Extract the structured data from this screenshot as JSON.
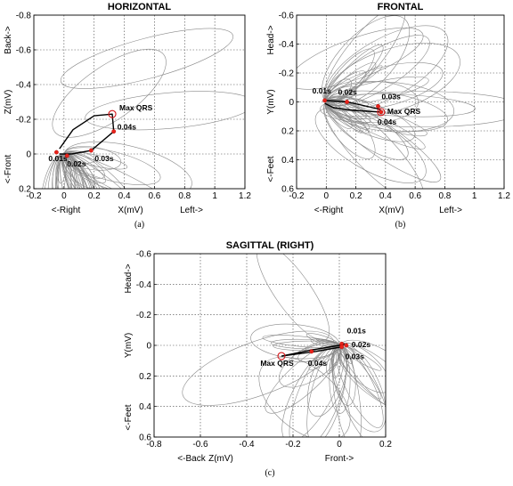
{
  "chart_data": [
    {
      "type": "scatter",
      "title": "HORIZONTAL",
      "caption": "(a)",
      "xlim": [
        -0.2,
        1.2
      ],
      "ylim": [
        -0.8,
        0.2
      ],
      "y_inverted": true,
      "x_ticks": [
        "-0.2",
        "0",
        "0.2",
        "0.4",
        "0.6",
        "0.8",
        "1",
        "1.2"
      ],
      "y_ticks": [
        "-0.8",
        "-0.6",
        "-0.4",
        "-0.2",
        "0",
        "0.2"
      ],
      "x_ticks_shown": [
        "-0.2",
        "0",
        "0.2",
        "0.4",
        "0.6",
        "0.8",
        "1",
        "1.2"
      ],
      "xlabel": "X(mV)",
      "xlabel_left": "<-Right",
      "xlabel_right": "Left->",
      "ylabel": "Z(mV)",
      "ylabel_top": "Back->",
      "ylabel_bottom": "<-Front",
      "grid": true,
      "max_qrs": {
        "label": "Max QRS",
        "x": 0.32,
        "y": -0.23
      },
      "loop": [
        [
          -0.03,
          0.0
        ],
        [
          0.05,
          0.0
        ],
        [
          0.18,
          -0.02
        ],
        [
          0.33,
          -0.13
        ],
        [
          0.32,
          -0.23
        ],
        [
          0.2,
          -0.22
        ],
        [
          0.06,
          -0.14
        ],
        [
          -0.03,
          -0.03
        ]
      ],
      "points": [
        {
          "label": "0.01s",
          "x": -0.05,
          "y": -0.01
        },
        {
          "label": "0.02s",
          "x": 0.02,
          "y": 0.01
        },
        {
          "label": "0.03s",
          "x": 0.18,
          "y": -0.02
        },
        {
          "label": "0.04s",
          "x": 0.33,
          "y": -0.13
        }
      ]
    },
    {
      "type": "scatter",
      "title": "FRONTAL",
      "caption": "(b)",
      "xlim": [
        -0.2,
        1.2
      ],
      "ylim": [
        -0.6,
        0.6
      ],
      "y_inverted": true,
      "x_ticks": [
        "-0.2",
        "0",
        "0.2",
        "0.4",
        "0.6",
        "0.8",
        "1",
        "1.2"
      ],
      "y_ticks": [
        "-0.6",
        "-0.4",
        "-0.2",
        "0",
        "0.2",
        "0.4",
        "0.6"
      ],
      "x_ticks_shown": [
        "-0.2",
        "0",
        "0.2",
        "0.4",
        "0.6",
        "0.8",
        "1",
        "1.2"
      ],
      "xlabel": "X(mV)",
      "xlabel_left": "<-Right",
      "xlabel_right": "Left->",
      "ylabel": "Y(mV)",
      "ylabel_top": "Head->",
      "ylabel_bottom": "<-Feet",
      "grid": true,
      "max_qrs": {
        "label": "Max QRS",
        "x": 0.37,
        "y": 0.07
      },
      "loop": [
        [
          -0.01,
          -0.01
        ],
        [
          0.14,
          0.0
        ],
        [
          0.36,
          0.05
        ],
        [
          0.37,
          0.07
        ],
        [
          0.2,
          0.06
        ],
        [
          0.05,
          0.04
        ],
        [
          -0.01,
          0.01
        ]
      ],
      "points": [
        {
          "label": "0.01s",
          "x": -0.01,
          "y": -0.01
        },
        {
          "label": "0.02s",
          "x": 0.14,
          "y": 0.0
        },
        {
          "label": "0.03s",
          "x": 0.35,
          "y": 0.03
        },
        {
          "label": "0.04s",
          "x": 0.37,
          "y": 0.07
        }
      ]
    },
    {
      "type": "scatter",
      "title": "SAGITTAL (RIGHT)",
      "caption": "(c)",
      "xlim": [
        -0.8,
        0.2
      ],
      "ylim": [
        -0.6,
        0.6
      ],
      "y_inverted": true,
      "x_ticks": [
        "-0.8",
        "-0.6",
        "-0.4",
        "-0.2",
        "0",
        "0.2"
      ],
      "y_ticks": [
        "-0.6",
        "-0.4",
        "-0.2",
        "0",
        "0.2",
        "0.4",
        "0.6"
      ],
      "x_ticks_shown": [
        "-0.8",
        "-0.6",
        "-0.4",
        "-0.2",
        "0",
        "0.2"
      ],
      "xlabel": "Z(mV)",
      "xlabel_left": "<-Back",
      "xlabel_right": "Front->",
      "ylabel": "Y(mV)",
      "ylabel_top": "Head->",
      "ylabel_bottom": "<-Feet",
      "grid": true,
      "max_qrs": {
        "label": "Max QRS",
        "x": -0.25,
        "y": 0.07
      },
      "loop": [
        [
          -0.25,
          0.07
        ],
        [
          -0.12,
          0.03
        ],
        [
          0.0,
          0.0
        ],
        [
          0.02,
          -0.01
        ],
        [
          0.01,
          0.01
        ],
        [
          -0.1,
          0.04
        ],
        [
          -0.25,
          0.07
        ]
      ],
      "points": [
        {
          "label": "0.01s",
          "x": 0.01,
          "y": -0.01
        },
        {
          "label": "0.02s",
          "x": 0.03,
          "y": 0.0
        },
        {
          "label": "0.03s",
          "x": 0.01,
          "y": 0.01
        },
        {
          "label": "0.04s",
          "x": -0.12,
          "y": 0.04
        }
      ]
    }
  ]
}
